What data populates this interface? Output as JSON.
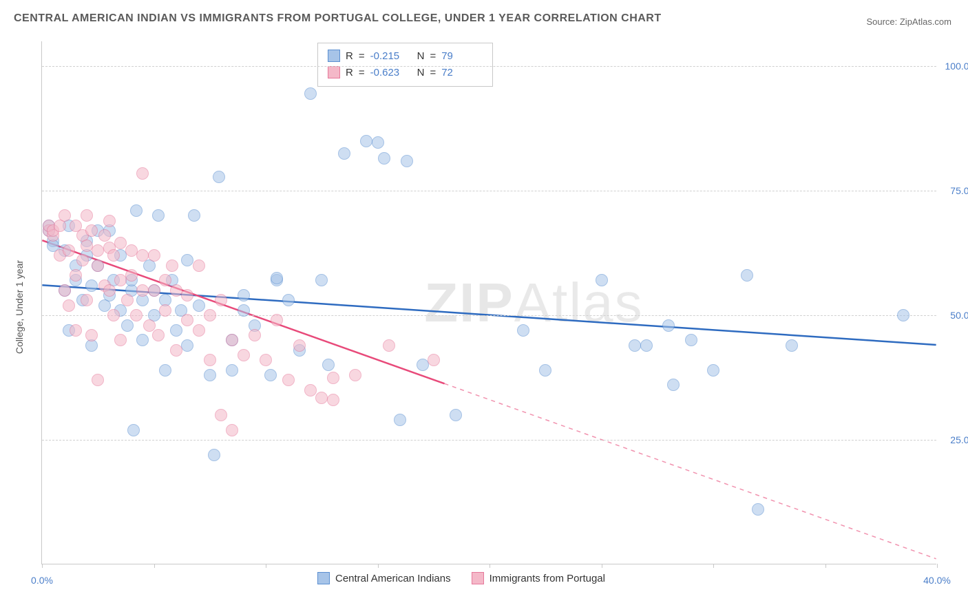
{
  "title": "CENTRAL AMERICAN INDIAN VS IMMIGRANTS FROM PORTUGAL COLLEGE, UNDER 1 YEAR CORRELATION CHART",
  "source_prefix": "Source: ",
  "source_name": "ZipAtlas.com",
  "y_axis_label": "College, Under 1 year",
  "watermark_bold": "ZIP",
  "watermark_thin": "Atlas",
  "chart": {
    "type": "scatter",
    "xlim": [
      0,
      40
    ],
    "ylim": [
      0,
      105
    ],
    "x_ticks": [
      0,
      5,
      10,
      15,
      20,
      25,
      30,
      35,
      40
    ],
    "x_tick_labels": {
      "0": "0.0%",
      "40": "40.0%"
    },
    "y_gridlines": [
      25,
      50,
      75,
      100
    ],
    "y_tick_labels": {
      "25": "25.0%",
      "50": "50.0%",
      "75": "75.0%",
      "100": "100.0%"
    },
    "background_color": "#ffffff",
    "grid_color": "#d0d0d0",
    "axis_color": "#c8c8c8",
    "tick_label_color": "#4a7ec9",
    "point_radius": 9,
    "point_opacity": 0.55
  },
  "series": [
    {
      "name": "Central American Indians",
      "legend_label": "Central American Indians",
      "color_fill": "#a7c4e8",
      "color_stroke": "#5b8fd1",
      "r_value": "-0.215",
      "n_value": "79",
      "trend": {
        "x1": 0,
        "y1": 56,
        "x2": 40,
        "y2": 44,
        "color": "#2e6bc0",
        "width": 2.5,
        "dash_from_x": null
      },
      "points": [
        [
          0.3,
          67
        ],
        [
          0.3,
          68
        ],
        [
          0.5,
          65
        ],
        [
          0.5,
          64
        ],
        [
          1.0,
          55
        ],
        [
          1.0,
          63
        ],
        [
          1.2,
          47
        ],
        [
          1.2,
          68
        ],
        [
          1.5,
          57
        ],
        [
          1.5,
          60
        ],
        [
          1.8,
          53
        ],
        [
          2.0,
          65
        ],
        [
          2.0,
          62
        ],
        [
          2.2,
          44
        ],
        [
          2.2,
          56
        ],
        [
          2.5,
          67
        ],
        [
          2.5,
          60
        ],
        [
          2.8,
          52
        ],
        [
          3.0,
          54
        ],
        [
          3.0,
          67
        ],
        [
          3.2,
          57
        ],
        [
          3.5,
          62
        ],
        [
          3.5,
          51
        ],
        [
          3.8,
          48
        ],
        [
          4.0,
          55
        ],
        [
          4.0,
          57
        ],
        [
          4.1,
          27
        ],
        [
          4.2,
          71
        ],
        [
          4.5,
          53
        ],
        [
          4.5,
          45
        ],
        [
          4.8,
          60
        ],
        [
          5.0,
          50
        ],
        [
          5.0,
          55
        ],
        [
          5.2,
          70
        ],
        [
          5.5,
          39
        ],
        [
          5.5,
          53
        ],
        [
          5.8,
          57
        ],
        [
          6.0,
          47
        ],
        [
          6.2,
          51
        ],
        [
          6.5,
          44
        ],
        [
          6.5,
          61
        ],
        [
          6.8,
          70
        ],
        [
          7.0,
          52
        ],
        [
          7.5,
          38
        ],
        [
          7.7,
          22
        ],
        [
          7.9,
          77.8
        ],
        [
          8.5,
          39
        ],
        [
          8.5,
          45
        ],
        [
          9.0,
          51
        ],
        [
          9.0,
          54
        ],
        [
          9.5,
          48
        ],
        [
          10.2,
          38
        ],
        [
          10.5,
          57
        ],
        [
          10.5,
          57.5
        ],
        [
          11.0,
          53
        ],
        [
          11.5,
          43
        ],
        [
          12.0,
          94.5
        ],
        [
          12.5,
          57
        ],
        [
          12.8,
          40
        ],
        [
          13.5,
          82.5
        ],
        [
          14.5,
          85
        ],
        [
          15.0,
          84.7
        ],
        [
          15.3,
          81.5
        ],
        [
          16.0,
          29
        ],
        [
          16.3,
          81
        ],
        [
          17.0,
          40
        ],
        [
          18.5,
          30
        ],
        [
          21.5,
          47
        ],
        [
          22.5,
          39
        ],
        [
          25.0,
          57
        ],
        [
          26.5,
          44
        ],
        [
          27.0,
          44
        ],
        [
          28.0,
          48
        ],
        [
          28.2,
          36
        ],
        [
          29.0,
          45
        ],
        [
          30.0,
          39
        ],
        [
          31.5,
          58
        ],
        [
          32.0,
          11
        ],
        [
          33.5,
          44
        ],
        [
          38.5,
          50
        ]
      ]
    },
    {
      "name": "Immigrants from Portugal",
      "legend_label": "Immigrants from Portugal",
      "color_fill": "#f4b8c8",
      "color_stroke": "#e6789a",
      "r_value": "-0.623",
      "n_value": "72",
      "trend": {
        "x1": 0,
        "y1": 65,
        "x2": 40,
        "y2": 1,
        "color": "#e84a7a",
        "width": 2.5,
        "dash_from_x": 18
      },
      "points": [
        [
          0.3,
          67
        ],
        [
          0.3,
          68
        ],
        [
          0.5,
          66
        ],
        [
          0.5,
          67
        ],
        [
          0.8,
          62
        ],
        [
          0.8,
          68
        ],
        [
          1.0,
          55
        ],
        [
          1.0,
          70
        ],
        [
          1.2,
          52
        ],
        [
          1.2,
          63
        ],
        [
          1.5,
          58
        ],
        [
          1.5,
          68
        ],
        [
          1.5,
          47
        ],
        [
          1.8,
          66
        ],
        [
          1.8,
          61
        ],
        [
          2.0,
          64
        ],
        [
          2.0,
          53
        ],
        [
          2.0,
          70
        ],
        [
          2.2,
          46
        ],
        [
          2.2,
          67
        ],
        [
          2.5,
          60
        ],
        [
          2.5,
          63
        ],
        [
          2.5,
          37
        ],
        [
          2.8,
          56
        ],
        [
          2.8,
          66
        ],
        [
          3.0,
          63.5
        ],
        [
          3.0,
          55
        ],
        [
          3.0,
          69
        ],
        [
          3.2,
          50
        ],
        [
          3.2,
          62
        ],
        [
          3.5,
          64.5
        ],
        [
          3.5,
          57
        ],
        [
          3.5,
          45
        ],
        [
          3.8,
          53
        ],
        [
          4.0,
          63
        ],
        [
          4.0,
          58
        ],
        [
          4.2,
          50
        ],
        [
          4.5,
          55
        ],
        [
          4.5,
          62
        ],
        [
          4.5,
          78.5
        ],
        [
          4.8,
          48
        ],
        [
          5.0,
          55
        ],
        [
          5.0,
          62
        ],
        [
          5.2,
          46
        ],
        [
          5.5,
          57
        ],
        [
          5.5,
          51
        ],
        [
          5.8,
          60
        ],
        [
          6.0,
          43
        ],
        [
          6.0,
          55
        ],
        [
          6.5,
          54
        ],
        [
          6.5,
          49
        ],
        [
          7.0,
          60
        ],
        [
          7.0,
          47
        ],
        [
          7.5,
          50
        ],
        [
          7.5,
          41
        ],
        [
          8.0,
          30
        ],
        [
          8.0,
          53
        ],
        [
          8.5,
          45
        ],
        [
          8.5,
          27
        ],
        [
          9.0,
          42
        ],
        [
          9.5,
          46
        ],
        [
          10.0,
          41
        ],
        [
          10.5,
          49
        ],
        [
          11.0,
          37
        ],
        [
          11.5,
          44
        ],
        [
          12.0,
          35
        ],
        [
          12.5,
          33.5
        ],
        [
          13.0,
          37.5
        ],
        [
          13.0,
          33
        ],
        [
          14.0,
          38
        ],
        [
          15.5,
          44
        ],
        [
          17.5,
          41
        ]
      ]
    }
  ],
  "stats_labels": {
    "r": "R",
    "eq": "=",
    "n": "N"
  }
}
